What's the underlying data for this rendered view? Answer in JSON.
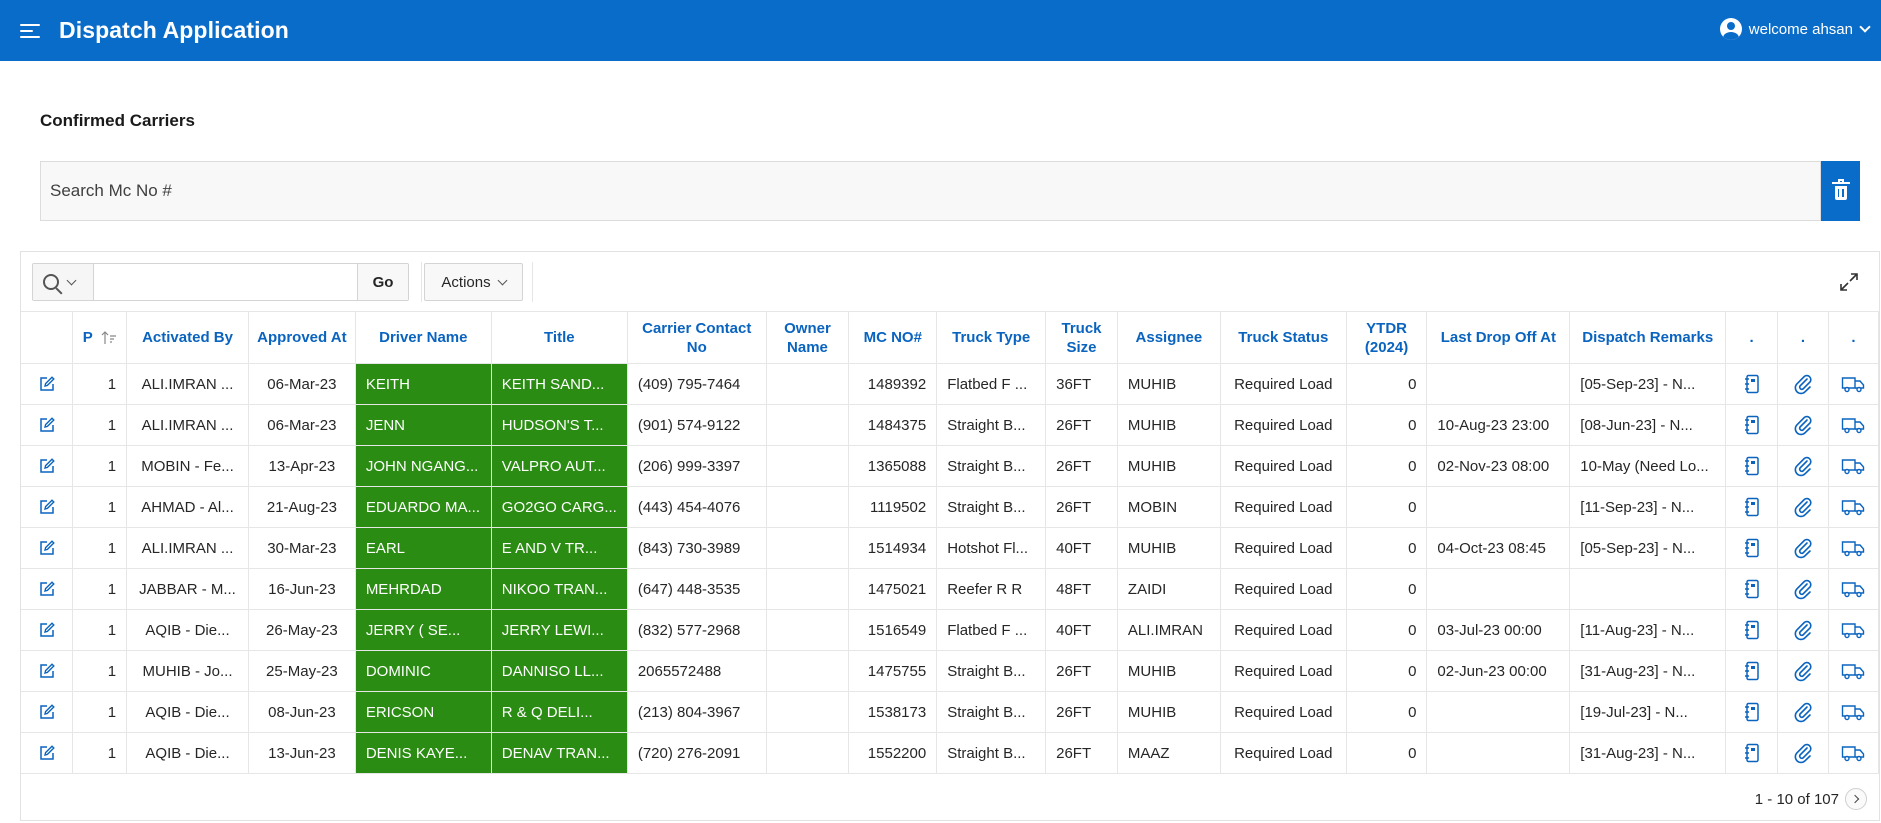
{
  "header": {
    "title": "Dispatch Application",
    "user": "welcome ahsan"
  },
  "region": {
    "title": "Confirmed Carriers"
  },
  "mc_search": {
    "placeholder": "Search Mc No #"
  },
  "toolbar": {
    "go_label": "Go",
    "actions_label": "Actions",
    "search_value": ""
  },
  "columns": [
    {
      "key": "p",
      "label": "P"
    },
    {
      "key": "activated_by",
      "label": "Activated By"
    },
    {
      "key": "approved_at",
      "label": "Approved At"
    },
    {
      "key": "driver_name",
      "label": "Driver Name"
    },
    {
      "key": "title",
      "label": "Title"
    },
    {
      "key": "carrier_contact",
      "label": "Carrier Contact No"
    },
    {
      "key": "owner_name",
      "label": "Owner Name"
    },
    {
      "key": "mc_no",
      "label": "MC NO#"
    },
    {
      "key": "truck_type",
      "label": "Truck Type"
    },
    {
      "key": "truck_size",
      "label": "Truck Size"
    },
    {
      "key": "assignee",
      "label": "Assignee"
    },
    {
      "key": "truck_status",
      "label": "Truck Status"
    },
    {
      "key": "ytdr",
      "label": "YTDR (2024)"
    },
    {
      "key": "last_drop_off",
      "label": "Last Drop Off At"
    },
    {
      "key": "dispatch_remarks",
      "label": "Dispatch Remarks"
    },
    {
      "key": "dot1",
      "label": "."
    },
    {
      "key": "dot2",
      "label": "."
    },
    {
      "key": "dot3",
      "label": "."
    }
  ],
  "rows": [
    {
      "p": "1",
      "activated_by": "ALI.IMRAN ...",
      "approved_at": "06-Mar-23",
      "driver_name": "KEITH",
      "title": "KEITH SAND...",
      "carrier_contact": "(409) 795-7464",
      "owner_name": "",
      "mc_no": "1489392",
      "truck_type": "Flatbed F ...",
      "truck_size": "36FT",
      "assignee": "MUHIB",
      "truck_status": "Required Load",
      "ytdr": "0",
      "last_drop_off": "",
      "dispatch_remarks": "[05-Sep-23] - N..."
    },
    {
      "p": "1",
      "activated_by": "ALI.IMRAN ...",
      "approved_at": "06-Mar-23",
      "driver_name": "JENN",
      "title": "HUDSON'S T...",
      "carrier_contact": "(901) 574-9122",
      "owner_name": "",
      "mc_no": "1484375",
      "truck_type": "Straight B...",
      "truck_size": "26FT",
      "assignee": "MUHIB",
      "truck_status": "Required Load",
      "ytdr": "0",
      "last_drop_off": "10-Aug-23 23:00",
      "dispatch_remarks": "[08-Jun-23] - N..."
    },
    {
      "p": "1",
      "activated_by": "MOBIN - Fe...",
      "approved_at": "13-Apr-23",
      "driver_name": "JOHN NGANG...",
      "title": "VALPRO AUT...",
      "carrier_contact": "(206) 999-3397",
      "owner_name": "",
      "mc_no": "1365088",
      "truck_type": "Straight B...",
      "truck_size": "26FT",
      "assignee": "MUHIB",
      "truck_status": "Required Load",
      "ytdr": "0",
      "last_drop_off": "02-Nov-23 08:00",
      "dispatch_remarks": "10-May (Need Lo..."
    },
    {
      "p": "1",
      "activated_by": "AHMAD - Al...",
      "approved_at": "21-Aug-23",
      "driver_name": "EDUARDO MA...",
      "title": "GO2GO CARG...",
      "carrier_contact": "(443) 454-4076",
      "owner_name": "",
      "mc_no": "1119502",
      "truck_type": "Straight B...",
      "truck_size": "26FT",
      "assignee": "MOBIN",
      "truck_status": "Required Load",
      "ytdr": "0",
      "last_drop_off": "",
      "dispatch_remarks": "[11-Sep-23] - N..."
    },
    {
      "p": "1",
      "activated_by": "ALI.IMRAN ...",
      "approved_at": "30-Mar-23",
      "driver_name": "EARL",
      "title": "E AND V TR...",
      "carrier_contact": "(843) 730-3989",
      "owner_name": "",
      "mc_no": "1514934",
      "truck_type": "Hotshot Fl...",
      "truck_size": "40FT",
      "assignee": "MUHIB",
      "truck_status": "Required Load",
      "ytdr": "0",
      "last_drop_off": "04-Oct-23 08:45",
      "dispatch_remarks": "[05-Sep-23] - N..."
    },
    {
      "p": "1",
      "activated_by": "JABBAR - M...",
      "approved_at": "16-Jun-23",
      "driver_name": "MEHRDAD",
      "title": "NIKOO TRAN...",
      "carrier_contact": "(647) 448-3535",
      "owner_name": "",
      "mc_no": "1475021",
      "truck_type": "Reefer R R",
      "truck_size": "48FT",
      "assignee": "ZAIDI",
      "truck_status": "Required Load",
      "ytdr": "0",
      "last_drop_off": "",
      "dispatch_remarks": ""
    },
    {
      "p": "1",
      "activated_by": "AQIB - Die...",
      "approved_at": "26-May-23",
      "driver_name": "JERRY ( SE...",
      "title": "JERRY LEWI...",
      "carrier_contact": "(832) 577-2968",
      "owner_name": "",
      "mc_no": "1516549",
      "truck_type": "Flatbed F ...",
      "truck_size": "40FT",
      "assignee": "ALI.IMRAN",
      "truck_status": "Required Load",
      "ytdr": "0",
      "last_drop_off": "03-Jul-23 00:00",
      "dispatch_remarks": "[11-Aug-23] - N..."
    },
    {
      "p": "1",
      "activated_by": "MUHIB - Jo...",
      "approved_at": "25-May-23",
      "driver_name": "DOMINIC",
      "title": "DANNISO LL...",
      "carrier_contact": "2065572488",
      "owner_name": "",
      "mc_no": "1475755",
      "truck_type": "Straight B...",
      "truck_size": "26FT",
      "assignee": "MUHIB",
      "truck_status": "Required Load",
      "ytdr": "0",
      "last_drop_off": "02-Jun-23 00:00",
      "dispatch_remarks": "[31-Aug-23] - N..."
    },
    {
      "p": "1",
      "activated_by": "AQIB - Die...",
      "approved_at": "08-Jun-23",
      "driver_name": "ERICSON",
      "title": "R & Q DELI...",
      "carrier_contact": "(213) 804-3967",
      "owner_name": "",
      "mc_no": "1538173",
      "truck_type": "Straight B...",
      "truck_size": "26FT",
      "assignee": "MUHIB",
      "truck_status": "Required Load",
      "ytdr": "0",
      "last_drop_off": "",
      "dispatch_remarks": "[19-Jul-23] - N..."
    },
    {
      "p": "1",
      "activated_by": "AQIB - Die...",
      "approved_at": "13-Jun-23",
      "driver_name": "DENIS KAYE...",
      "title": "DENAV TRAN...",
      "carrier_contact": "(720) 276-2091",
      "owner_name": "",
      "mc_no": "1552200",
      "truck_type": "Straight B...",
      "truck_size": "26FT",
      "assignee": "MAAZ",
      "truck_status": "Required Load",
      "ytdr": "0",
      "last_drop_off": "",
      "dispatch_remarks": "[31-Aug-23] - N..."
    }
  ],
  "pagination": {
    "label": "1 - 10 of 107"
  },
  "colors": {
    "header_bg": "#0a6cc9",
    "link_blue": "#0a64bf",
    "driver_green": "#2a8c12"
  },
  "icons": [
    "menu-icon",
    "user-icon",
    "trash-icon",
    "search-icon",
    "expand-icon",
    "edit-icon",
    "notebook-icon",
    "paperclip-icon",
    "truck-icon",
    "sort-icon",
    "next-page-icon"
  ]
}
